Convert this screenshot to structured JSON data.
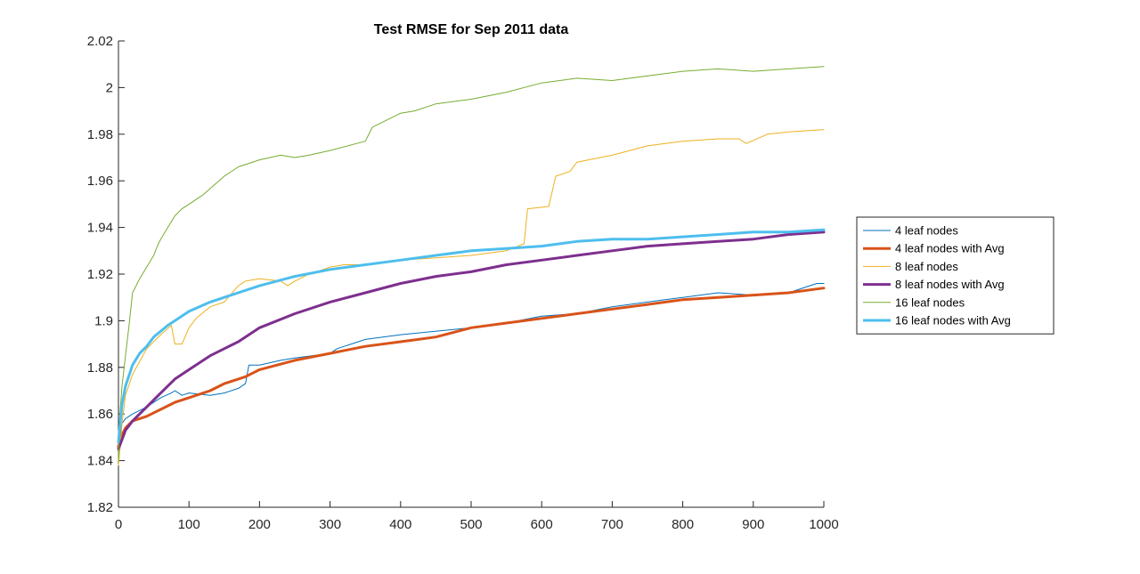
{
  "chart_data": {
    "type": "line",
    "title": "Test RMSE for Sep 2011 data",
    "xlabel": "",
    "ylabel": "",
    "xlim": [
      0,
      1000
    ],
    "ylim": [
      1.82,
      2.02
    ],
    "x_ticks": [
      "0",
      "100",
      "200",
      "300",
      "400",
      "500",
      "600",
      "700",
      "800",
      "900",
      "1000"
    ],
    "y_ticks": [
      "1.82",
      "1.84",
      "1.86",
      "1.88",
      "1.9",
      "1.92",
      "1.94",
      "1.96",
      "1.98",
      "2",
      "2.02"
    ],
    "grid": false,
    "legend_position": "right",
    "series": [
      {
        "name": "4 leaf nodes",
        "color": "#0072BD",
        "width": 1,
        "x": [
          0,
          5,
          10,
          20,
          40,
          60,
          75,
          80,
          90,
          100,
          130,
          150,
          170,
          180,
          185,
          200,
          230,
          250,
          300,
          310,
          320,
          330,
          340,
          350,
          400,
          500,
          550,
          600,
          650,
          700,
          750,
          800,
          850,
          900,
          950,
          990,
          1000
        ],
        "y": [
          1.843,
          1.856,
          1.858,
          1.86,
          1.863,
          1.867,
          1.869,
          1.87,
          1.868,
          1.869,
          1.868,
          1.869,
          1.871,
          1.873,
          1.881,
          1.881,
          1.883,
          1.884,
          1.886,
          1.888,
          1.889,
          1.89,
          1.891,
          1.892,
          1.894,
          1.897,
          1.899,
          1.902,
          1.903,
          1.906,
          1.908,
          1.91,
          1.912,
          1.911,
          1.912,
          1.916,
          1.916
        ]
      },
      {
        "name": "4 leaf nodes with Avg",
        "color": "#D95319",
        "width": 3,
        "x": [
          0,
          5,
          10,
          20,
          40,
          60,
          80,
          100,
          130,
          150,
          170,
          180,
          200,
          250,
          300,
          350,
          400,
          450,
          500,
          550,
          600,
          650,
          700,
          750,
          800,
          850,
          900,
          950,
          1000
        ],
        "y": [
          1.846,
          1.851,
          1.854,
          1.857,
          1.859,
          1.862,
          1.865,
          1.867,
          1.87,
          1.873,
          1.875,
          1.876,
          1.879,
          1.883,
          1.886,
          1.889,
          1.891,
          1.893,
          1.897,
          1.899,
          1.901,
          1.903,
          1.905,
          1.907,
          1.909,
          1.91,
          1.911,
          1.912,
          1.914
        ]
      },
      {
        "name": "8 leaf nodes",
        "color": "#EDB120",
        "width": 1,
        "x": [
          0,
          3,
          5,
          10,
          20,
          40,
          60,
          75,
          80,
          90,
          100,
          110,
          130,
          150,
          170,
          180,
          200,
          230,
          240,
          250,
          270,
          290,
          300,
          320,
          350,
          400,
          450,
          500,
          550,
          575,
          580,
          610,
          620,
          640,
          650,
          700,
          750,
          800,
          850,
          880,
          890,
          920,
          950,
          1000
        ],
        "y": [
          1.838,
          1.848,
          1.856,
          1.868,
          1.877,
          1.888,
          1.894,
          1.898,
          1.89,
          1.89,
          1.897,
          1.901,
          1.906,
          1.908,
          1.915,
          1.917,
          1.918,
          1.917,
          1.915,
          1.917,
          1.92,
          1.922,
          1.923,
          1.924,
          1.924,
          1.926,
          1.927,
          1.928,
          1.93,
          1.933,
          1.948,
          1.949,
          1.962,
          1.964,
          1.968,
          1.971,
          1.975,
          1.977,
          1.978,
          1.978,
          1.976,
          1.98,
          1.981,
          1.982
        ]
      },
      {
        "name": "8 leaf nodes with Avg",
        "color": "#7E2F8E",
        "width": 3,
        "x": [
          0,
          5,
          10,
          20,
          40,
          60,
          80,
          100,
          130,
          150,
          170,
          200,
          250,
          300,
          350,
          400,
          450,
          500,
          550,
          600,
          650,
          700,
          750,
          800,
          850,
          900,
          950,
          1000
        ],
        "y": [
          1.845,
          1.849,
          1.853,
          1.857,
          1.863,
          1.869,
          1.875,
          1.879,
          1.885,
          1.888,
          1.891,
          1.897,
          1.903,
          1.908,
          1.912,
          1.916,
          1.919,
          1.921,
          1.924,
          1.926,
          1.928,
          1.93,
          1.932,
          1.933,
          1.934,
          1.935,
          1.937,
          1.938
        ]
      },
      {
        "name": "16 leaf nodes",
        "color": "#77AC30",
        "width": 1,
        "x": [
          0,
          2,
          5,
          10,
          15,
          20,
          30,
          40,
          50,
          55,
          60,
          70,
          80,
          90,
          100,
          120,
          150,
          170,
          200,
          230,
          250,
          270,
          300,
          350,
          360,
          380,
          400,
          420,
          450,
          500,
          550,
          600,
          650,
          700,
          750,
          800,
          850,
          900,
          950,
          1000
        ],
        "y": [
          1.84,
          1.86,
          1.872,
          1.885,
          1.898,
          1.912,
          1.918,
          1.923,
          1.928,
          1.932,
          1.935,
          1.94,
          1.945,
          1.948,
          1.95,
          1.954,
          1.962,
          1.966,
          1.969,
          1.971,
          1.97,
          1.971,
          1.973,
          1.977,
          1.983,
          1.986,
          1.989,
          1.99,
          1.993,
          1.995,
          1.998,
          2.002,
          2.004,
          2.003,
          2.005,
          2.007,
          2.008,
          2.007,
          2.008,
          2.009
        ]
      },
      {
        "name": "16 leaf nodes with Avg",
        "color": "#4DBEEE",
        "width": 3,
        "x": [
          0,
          3,
          5,
          10,
          20,
          30,
          40,
          50,
          70,
          100,
          130,
          150,
          200,
          250,
          300,
          350,
          400,
          450,
          500,
          550,
          600,
          650,
          700,
          750,
          800,
          850,
          900,
          950,
          1000
        ],
        "y": [
          1.848,
          1.858,
          1.864,
          1.872,
          1.881,
          1.886,
          1.889,
          1.893,
          1.898,
          1.904,
          1.908,
          1.91,
          1.915,
          1.919,
          1.922,
          1.924,
          1.926,
          1.928,
          1.93,
          1.931,
          1.932,
          1.934,
          1.935,
          1.935,
          1.936,
          1.937,
          1.938,
          1.938,
          1.939
        ]
      }
    ]
  }
}
